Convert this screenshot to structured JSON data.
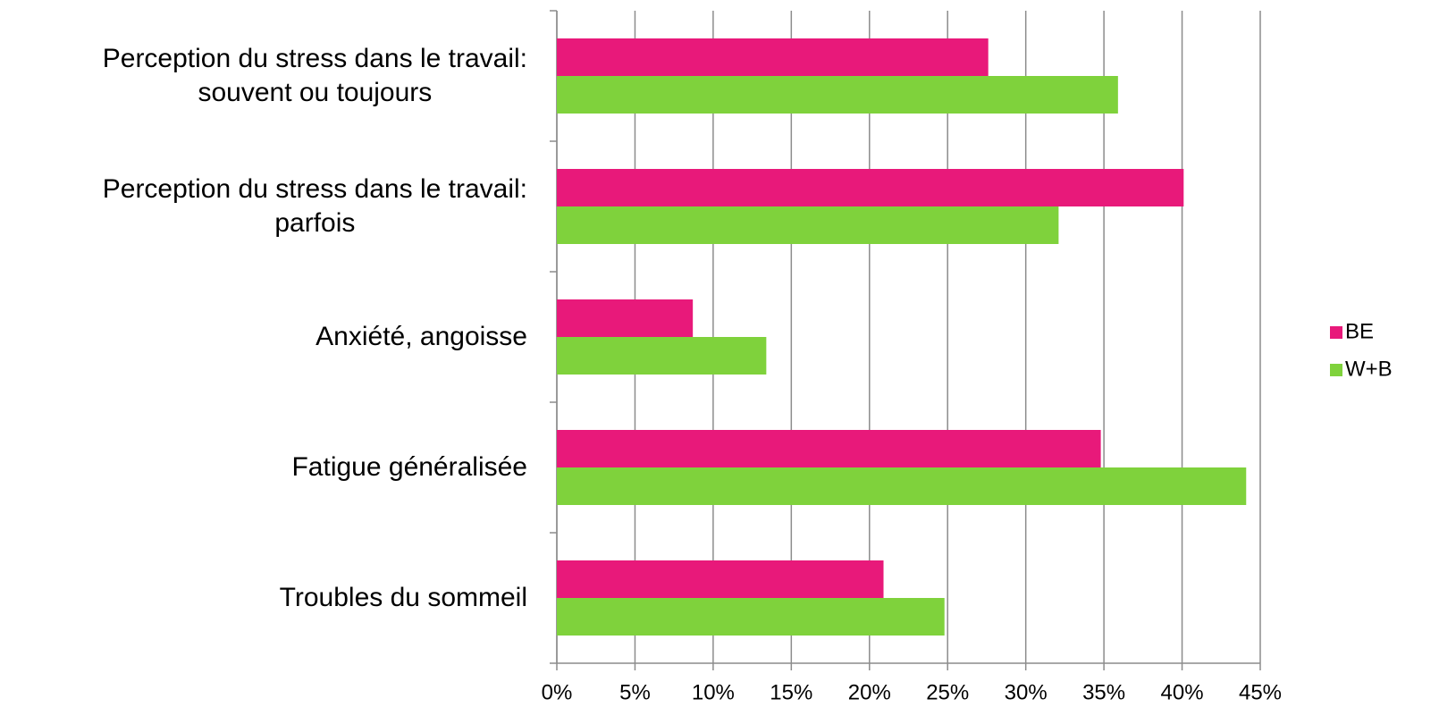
{
  "chart_data": {
    "type": "bar",
    "orientation": "horizontal",
    "categories": [
      "Perception du stress dans le travail:\nsouvent ou toujours",
      "Perception du stress dans le travail:\nparfois",
      "Anxiété, angoisse",
      "Fatigue généralisée",
      "Troubles du sommeil"
    ],
    "series": [
      {
        "name": "BE",
        "color": "#e8197a",
        "values": [
          27.6,
          40.1,
          8.7,
          34.8,
          20.9
        ]
      },
      {
        "name": "W+B",
        "color": "#7fd23c",
        "values": [
          35.9,
          32.1,
          13.4,
          44.1,
          24.8
        ]
      }
    ],
    "xlim": [
      0,
      45
    ],
    "xticks": [
      {
        "value": 0,
        "label": "0%"
      },
      {
        "value": 5,
        "label": "5%"
      },
      {
        "value": 10,
        "label": "10%"
      },
      {
        "value": 15,
        "label": "15%"
      },
      {
        "value": 20,
        "label": "20%"
      },
      {
        "value": 25,
        "label": "25%"
      },
      {
        "value": 30,
        "label": "30%"
      },
      {
        "value": 35,
        "label": "35%"
      },
      {
        "value": 40,
        "label": "40%"
      },
      {
        "value": 45,
        "label": "45%"
      }
    ],
    "grid": true,
    "legend": "right"
  }
}
